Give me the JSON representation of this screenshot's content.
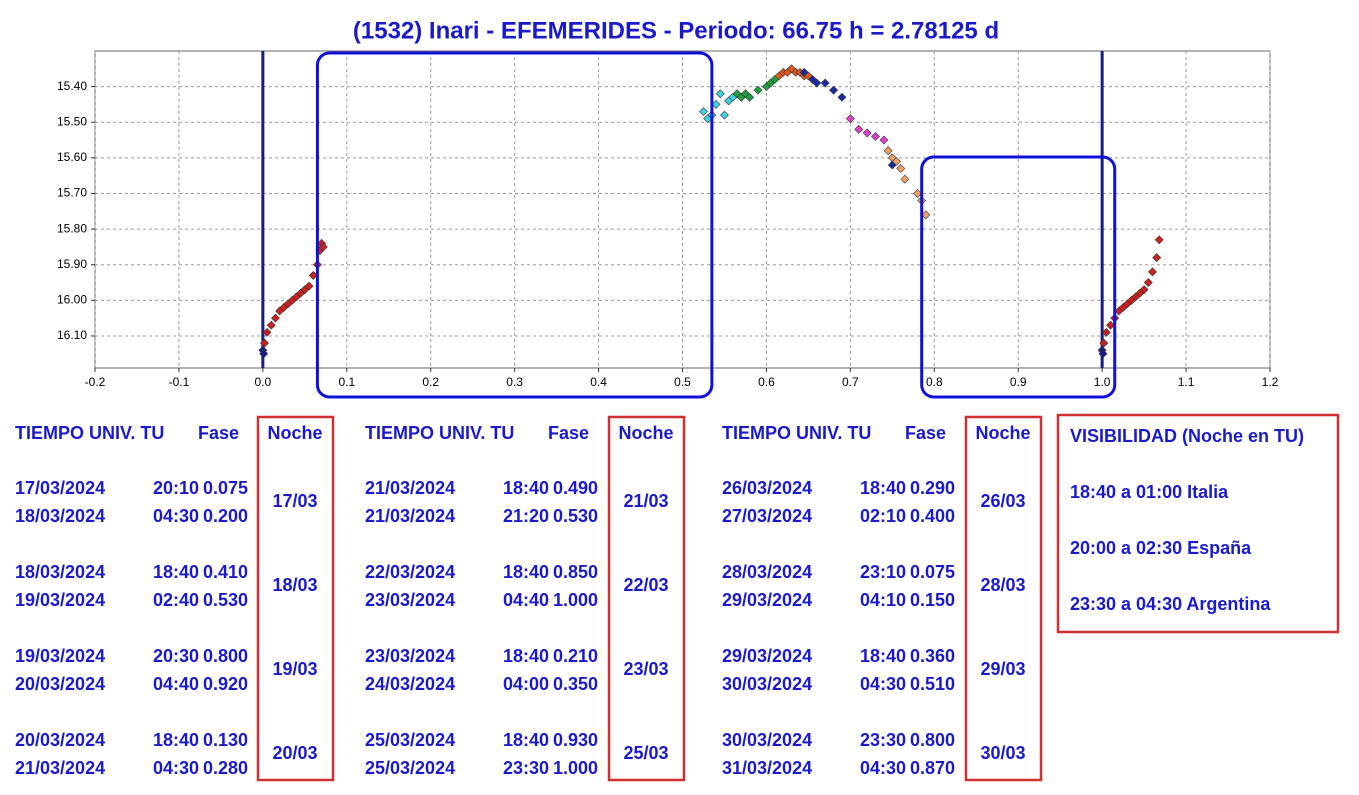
{
  "chart_data": {
    "type": "scatter",
    "title": "(1532) Inari - EFEMERIDES - Periodo: 66.75 h = 2.78125 d",
    "xlim": [
      -0.2,
      1.2
    ],
    "xticks": [
      -0.2,
      -0.1,
      {
        "value": 0,
        "label": "0.0"
      },
      0.1,
      0.2,
      0.3,
      0.4,
      0.5,
      0.6,
      0.7,
      0.8,
      0.9,
      {
        "value": 1,
        "label": "1.0"
      },
      1.1,
      1.2
    ],
    "ylim": [
      16.19,
      15.3
    ],
    "yticks": [
      {
        "value": 15.4,
        "label": "15.40"
      },
      {
        "value": 15.5,
        "label": "15.50"
      },
      {
        "value": 15.6,
        "label": "15.60"
      },
      {
        "value": 15.7,
        "label": "15.70"
      },
      {
        "value": 15.8,
        "label": "15.80"
      },
      {
        "value": 15.9,
        "label": "15.90"
      },
      {
        "value": 16.0,
        "label": "16.00"
      },
      {
        "value": 16.1,
        "label": "16.10"
      }
    ],
    "grid": true,
    "vlines": [
      0,
      1
    ],
    "vline_color": "#1a1a80",
    "highlight_ranges": [
      [
        0.065,
        0.535
      ],
      [
        0.785,
        1.015
      ]
    ],
    "highlight_color": "#1010dd",
    "series": [
      {
        "color": "#cc2020",
        "x": [
          0.002,
          0.005,
          0.01,
          0.015,
          0.02,
          0.025,
          0.03,
          0.035,
          0.04,
          0.045,
          0.05,
          0.055,
          0.06,
          0.065,
          0.068,
          0.07,
          0.072
        ],
        "values": [
          16.12,
          16.09,
          16.07,
          16.05,
          16.03,
          16.02,
          16.01,
          16.0,
          15.99,
          15.98,
          15.97,
          15.96,
          15.93,
          15.9,
          15.86,
          15.84,
          15.85
        ]
      },
      {
        "color": "#cc2020",
        "x": [
          1.002,
          1.005,
          1.01,
          1.015,
          1.02,
          1.025,
          1.03,
          1.035,
          1.04,
          1.045,
          1.05,
          1.055,
          1.06,
          1.065,
          1.068
        ],
        "values": [
          16.12,
          16.09,
          16.07,
          16.05,
          16.03,
          16.02,
          16.01,
          16.0,
          15.99,
          15.98,
          15.97,
          15.95,
          15.92,
          15.88,
          15.83
        ]
      },
      {
        "color": "#1a1a90",
        "x": [
          0.0,
          0.001,
          1.0,
          1.001
        ],
        "values": [
          16.14,
          16.15,
          16.14,
          16.15
        ]
      },
      {
        "color": "#40d0e0",
        "x": [
          0.525,
          0.53,
          0.535,
          0.54,
          0.545,
          0.55,
          0.555,
          0.56
        ],
        "values": [
          15.47,
          15.49,
          15.48,
          15.45,
          15.42,
          15.48,
          15.44,
          15.43
        ]
      },
      {
        "color": "#20a040",
        "x": [
          0.565,
          0.57,
          0.575,
          0.58,
          0.59,
          0.6,
          0.605,
          0.61
        ],
        "values": [
          15.42,
          15.43,
          15.42,
          15.43,
          15.41,
          15.4,
          15.39,
          15.38
        ]
      },
      {
        "color": "#e05a20",
        "x": [
          0.615,
          0.62,
          0.625,
          0.63,
          0.635,
          0.64,
          0.645,
          0.65
        ],
        "values": [
          15.37,
          15.36,
          15.36,
          15.35,
          15.36,
          15.36,
          15.37,
          15.37
        ]
      },
      {
        "color": "#1a2aa0",
        "x": [
          0.645,
          0.655,
          0.66,
          0.67,
          0.68,
          0.69,
          0.75
        ],
        "values": [
          15.36,
          15.38,
          15.39,
          15.39,
          15.41,
          15.43,
          15.62
        ]
      },
      {
        "color": "#e040d0",
        "x": [
          0.7,
          0.71,
          0.72,
          0.73,
          0.74
        ],
        "values": [
          15.49,
          15.52,
          15.53,
          15.54,
          15.55
        ]
      },
      {
        "color": "#f0a060",
        "x": [
          0.745,
          0.75,
          0.755,
          0.76,
          0.765,
          0.78,
          0.785,
          0.79
        ],
        "values": [
          15.58,
          15.6,
          15.61,
          15.63,
          15.66,
          15.7,
          15.72,
          15.76
        ]
      }
    ]
  },
  "ephemeris": [
    {
      "header": [
        "TIEMPO UNIV. TU",
        "Fase",
        "Noche"
      ],
      "rows": [
        {
          "lines": [
            [
              "17/03/2024",
              "20:10",
              "0.075"
            ],
            [
              "18/03/2024",
              "04:30",
              "0.200"
            ]
          ],
          "noche": "17/03"
        },
        {
          "lines": [
            [
              "18/03/2024",
              "18:40",
              "0.410"
            ],
            [
              "19/03/2024",
              "02:40",
              "0.530"
            ]
          ],
          "noche": "18/03"
        },
        {
          "lines": [
            [
              "19/03/2024",
              "20:30",
              "0.800"
            ],
            [
              "20/03/2024",
              "04:40",
              "0.920"
            ]
          ],
          "noche": "19/03"
        },
        {
          "lines": [
            [
              "20/03/2024",
              "18:40",
              "0.130"
            ],
            [
              "21/03/2024",
              "04:30",
              "0.280"
            ]
          ],
          "noche": "20/03"
        }
      ]
    },
    {
      "header": [
        "TIEMPO UNIV. TU",
        "Fase",
        "Noche"
      ],
      "rows": [
        {
          "lines": [
            [
              "21/03/2024",
              "18:40",
              "0.490"
            ],
            [
              "21/03/2024",
              "21:20",
              "0.530"
            ]
          ],
          "noche": "21/03"
        },
        {
          "lines": [
            [
              "22/03/2024",
              "18:40",
              "0.850"
            ],
            [
              "23/03/2024",
              "04:40",
              "1.000"
            ]
          ],
          "noche": "22/03"
        },
        {
          "lines": [
            [
              "23/03/2024",
              "18:40",
              "0.210"
            ],
            [
              "24/03/2024",
              "04:00",
              "0.350"
            ]
          ],
          "noche": "23/03"
        },
        {
          "lines": [
            [
              "25/03/2024",
              "18:40",
              "0.930"
            ],
            [
              "25/03/2024",
              "23:30",
              "1.000"
            ]
          ],
          "noche": "25/03"
        }
      ]
    },
    {
      "header": [
        "TIEMPO UNIV. TU",
        "Fase",
        "Noche"
      ],
      "rows": [
        {
          "lines": [
            [
              "26/03/2024",
              "18:40",
              "0.290"
            ],
            [
              "27/03/2024",
              "02:10",
              "0.400"
            ]
          ],
          "noche": "26/03"
        },
        {
          "lines": [
            [
              "28/03/2024",
              "23:10",
              "0.075"
            ],
            [
              "29/03/2024",
              "04:10",
              "0.150"
            ]
          ],
          "noche": "28/03"
        },
        {
          "lines": [
            [
              "29/03/2024",
              "18:40",
              "0.360"
            ],
            [
              "30/03/2024",
              "04:30",
              "0.510"
            ]
          ],
          "noche": "29/03"
        },
        {
          "lines": [
            [
              "30/03/2024",
              "23:30",
              "0.800"
            ],
            [
              "31/03/2024",
              "04:30",
              "0.870"
            ]
          ],
          "noche": "30/03"
        }
      ]
    }
  ],
  "visibility": {
    "title": "VISIBILIDAD (Noche en TU)",
    "lines": [
      "18:40 a 01:00 Italia",
      "20:00 a 02:30 España",
      "23:30 a 04:30 Argentina"
    ]
  }
}
